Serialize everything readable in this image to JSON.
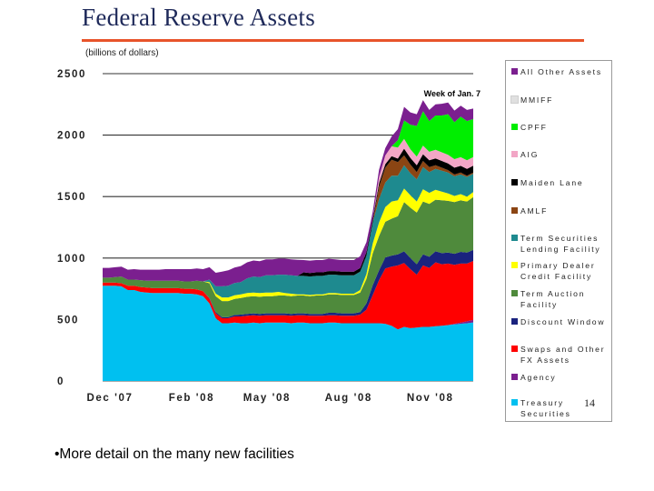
{
  "slide": {
    "title": "Federal Reserve Assets",
    "units": "(billions of dollars)",
    "page_number": "14",
    "bullet": "•More detail on the many new facilities"
  },
  "chart_data": {
    "type": "area",
    "stacked": true,
    "title": "Federal Reserve Assets",
    "ylabel": "(billions of dollars)",
    "xlabel": "",
    "ylim": [
      0,
      2500
    ],
    "xlim": [
      0,
      59
    ],
    "y_ticks": [
      0,
      500,
      1000,
      1500,
      2000,
      2500
    ],
    "y_tick_labels": [
      "0",
      "500",
      "1000",
      "1500",
      "2000",
      "2500"
    ],
    "x_tick_positions": [
      0,
      13,
      25,
      38,
      51
    ],
    "x_tick_labels": [
      "Dec '07",
      "Feb '08",
      "May '08",
      "Aug '08",
      "Nov '08"
    ],
    "annotation": {
      "text": "Week of Jan. 7",
      "x": 59,
      "y": 2310
    },
    "x": [
      0,
      1,
      2,
      3,
      4,
      5,
      6,
      7,
      8,
      9,
      10,
      11,
      12,
      13,
      14,
      15,
      16,
      17,
      18,
      19,
      20,
      21,
      22,
      23,
      24,
      25,
      26,
      27,
      28,
      29,
      30,
      31,
      32,
      33,
      34,
      35,
      36,
      37,
      38,
      39,
      40,
      41,
      42,
      43,
      44,
      45,
      46,
      47,
      48,
      49,
      50,
      51,
      52,
      53,
      54,
      55,
      56,
      57,
      58,
      59
    ],
    "series": [
      {
        "name": "Treasury Securities",
        "color": "#00c0f0",
        "values": [
          775,
          775,
          775,
          770,
          740,
          740,
          725,
          720,
          715,
          715,
          715,
          715,
          715,
          710,
          710,
          705,
          690,
          630,
          510,
          470,
          470,
          475,
          470,
          470,
          475,
          470,
          475,
          475,
          475,
          475,
          470,
          475,
          475,
          470,
          470,
          470,
          475,
          475,
          470,
          470,
          470,
          470,
          470,
          470,
          470,
          465,
          450,
          420,
          440,
          430,
          435,
          440,
          440,
          445,
          450,
          455,
          460,
          465,
          470,
          476
        ]
      },
      {
        "name": "Agency",
        "color": "#7b1f8f",
        "values": [
          0,
          0,
          0,
          0,
          0,
          0,
          0,
          0,
          0,
          0,
          0,
          0,
          0,
          0,
          0,
          0,
          0,
          0,
          0,
          0,
          0,
          0,
          0,
          0,
          0,
          0,
          0,
          0,
          0,
          0,
          0,
          0,
          0,
          0,
          0,
          0,
          0,
          0,
          0,
          0,
          0,
          0,
          0,
          0,
          0,
          0,
          0,
          0,
          0,
          0,
          0,
          0,
          0,
          0,
          0,
          0,
          5,
          10,
          15,
          20
        ]
      },
      {
        "name": "Swaps and Other FX Assets",
        "color": "#ff0000",
        "values": [
          25,
          25,
          25,
          25,
          35,
          35,
          40,
          40,
          40,
          40,
          40,
          40,
          40,
          40,
          40,
          40,
          40,
          40,
          40,
          40,
          40,
          50,
          55,
          60,
          60,
          60,
          60,
          60,
          60,
          60,
          60,
          60,
          60,
          60,
          60,
          60,
          60,
          60,
          60,
          60,
          60,
          70,
          110,
          230,
          350,
          450,
          480,
          520,
          520,
          480,
          430,
          500,
          480,
          520,
          500,
          500,
          480,
          480,
          470,
          480
        ]
      },
      {
        "name": "Discount Window",
        "color": "#1a237e",
        "values": [
          0,
          0,
          0,
          0,
          0,
          0,
          0,
          0,
          0,
          0,
          0,
          0,
          0,
          0,
          0,
          0,
          0,
          5,
          10,
          10,
          10,
          12,
          15,
          15,
          15,
          15,
          15,
          15,
          15,
          15,
          15,
          15,
          15,
          15,
          15,
          15,
          20,
          20,
          20,
          20,
          20,
          20,
          50,
          80,
          80,
          90,
          90,
          90,
          95,
          90,
          85,
          90,
          90,
          90,
          90,
          90,
          90,
          95,
          90,
          90
        ]
      },
      {
        "name": "Term Auction Facility",
        "color": "#4f8a3c",
        "values": [
          40,
          40,
          45,
          55,
          50,
          50,
          55,
          55,
          60,
          60,
          60,
          60,
          60,
          60,
          60,
          70,
          80,
          120,
          130,
          130,
          130,
          130,
          135,
          140,
          140,
          140,
          140,
          140,
          145,
          145,
          145,
          145,
          145,
          145,
          150,
          150,
          150,
          150,
          150,
          150,
          150,
          160,
          200,
          260,
          280,
          290,
          300,
          310,
          400,
          410,
          420,
          430,
          430,
          420,
          430,
          420,
          420,
          420,
          415,
          430
        ]
      },
      {
        "name": "Primary Dealer Credit Facility",
        "color": "#ffff00",
        "values": [
          0,
          0,
          0,
          0,
          0,
          0,
          0,
          0,
          0,
          0,
          0,
          0,
          0,
          0,
          0,
          0,
          0,
          10,
          20,
          30,
          30,
          30,
          30,
          30,
          30,
          30,
          30,
          30,
          30,
          20,
          20,
          10,
          10,
          10,
          10,
          10,
          10,
          10,
          10,
          10,
          10,
          20,
          40,
          80,
          110,
          120,
          140,
          130,
          110,
          100,
          90,
          100,
          90,
          80,
          70,
          60,
          50,
          50,
          40,
          40
        ]
      },
      {
        "name": "Term Securities Lending Facility",
        "color": "#1e8a8f",
        "values": [
          0,
          0,
          0,
          0,
          0,
          0,
          0,
          0,
          0,
          0,
          0,
          0,
          0,
          0,
          0,
          0,
          0,
          20,
          60,
          90,
          95,
          100,
          100,
          120,
          130,
          130,
          140,
          140,
          140,
          150,
          150,
          150,
          150,
          150,
          150,
          150,
          150,
          150,
          150,
          150,
          150,
          150,
          150,
          170,
          190,
          200,
          210,
          200,
          190,
          180,
          180,
          180,
          170,
          170,
          170,
          170,
          160,
          160,
          160,
          150
        ]
      },
      {
        "name": "AMLF",
        "color": "#8b4513",
        "values": [
          0,
          0,
          0,
          0,
          0,
          0,
          0,
          0,
          0,
          0,
          0,
          0,
          0,
          0,
          0,
          0,
          0,
          0,
          0,
          0,
          0,
          0,
          0,
          0,
          0,
          0,
          0,
          0,
          0,
          0,
          0,
          0,
          0,
          0,
          0,
          0,
          0,
          0,
          0,
          0,
          0,
          0,
          0,
          0,
          100,
          120,
          130,
          110,
          80,
          70,
          60,
          50,
          40,
          30,
          25,
          20,
          15,
          15,
          10,
          10
        ]
      },
      {
        "name": "Maiden Lane",
        "color": "#000000",
        "values": [
          0,
          0,
          0,
          0,
          0,
          0,
          0,
          0,
          0,
          0,
          0,
          0,
          0,
          0,
          0,
          0,
          0,
          0,
          0,
          0,
          0,
          0,
          0,
          0,
          0,
          0,
          0,
          0,
          0,
          0,
          0,
          0,
          29,
          29,
          29,
          29,
          29,
          29,
          29,
          29,
          29,
          29,
          29,
          29,
          29,
          29,
          29,
          29,
          55,
          55,
          55,
          55,
          55,
          55,
          55,
          55,
          55,
          55,
          55,
          55
        ]
      },
      {
        "name": "AIG",
        "color": "#f2a6c6",
        "values": [
          0,
          0,
          0,
          0,
          0,
          0,
          0,
          0,
          0,
          0,
          0,
          0,
          0,
          0,
          0,
          0,
          0,
          0,
          0,
          0,
          0,
          0,
          0,
          0,
          0,
          0,
          0,
          0,
          0,
          0,
          0,
          0,
          0,
          0,
          0,
          0,
          0,
          0,
          0,
          0,
          0,
          0,
          0,
          0,
          50,
          70,
          80,
          90,
          80,
          70,
          70,
          70,
          70,
          70,
          70,
          70,
          70,
          70,
          70,
          70
        ]
      },
      {
        "name": "CPFF",
        "color": "#00ee00",
        "values": [
          0,
          0,
          0,
          0,
          0,
          0,
          0,
          0,
          0,
          0,
          0,
          0,
          0,
          0,
          0,
          0,
          0,
          0,
          0,
          0,
          0,
          0,
          0,
          0,
          0,
          0,
          0,
          0,
          0,
          0,
          0,
          0,
          0,
          0,
          0,
          0,
          0,
          0,
          0,
          0,
          0,
          0,
          0,
          0,
          0,
          0,
          0,
          60,
          150,
          200,
          250,
          280,
          250,
          280,
          300,
          330,
          300,
          330,
          320,
          310
        ]
      },
      {
        "name": "MMIFF",
        "color": "#e0e0e0",
        "values": [
          0,
          0,
          0,
          0,
          0,
          0,
          0,
          0,
          0,
          0,
          0,
          0,
          0,
          0,
          0,
          0,
          0,
          0,
          0,
          0,
          0,
          0,
          0,
          0,
          0,
          0,
          0,
          0,
          0,
          0,
          0,
          0,
          0,
          0,
          0,
          0,
          0,
          0,
          0,
          0,
          0,
          0,
          0,
          0,
          0,
          0,
          0,
          0,
          0,
          0,
          0,
          0,
          0,
          0,
          0,
          0,
          0,
          0,
          0,
          0
        ]
      },
      {
        "name": "All Other Assets",
        "color": "#7b1f8f",
        "values": [
          80,
          80,
          80,
          80,
          80,
          85,
          85,
          90,
          90,
          90,
          95,
          95,
          95,
          100,
          100,
          100,
          100,
          100,
          110,
          120,
          125,
          125,
          130,
          130,
          130,
          130,
          130,
          130,
          130,
          130,
          130,
          130,
          100,
          100,
          100,
          100,
          100,
          95,
          95,
          95,
          95,
          95,
          80,
          60,
          60,
          60,
          80,
          90,
          110,
          100,
          95,
          90,
          90,
          90,
          95,
          95,
          95,
          90,
          90,
          85
        ]
      }
    ]
  },
  "legend": {
    "items": [
      {
        "label": "All Other Assets",
        "color": "#7b1f8f"
      },
      {
        "label": "MMIFF",
        "color": "#e0e0e0"
      },
      {
        "label": "CPFF",
        "color": "#00ee00"
      },
      {
        "label": "AIG",
        "color": "#f2a6c6"
      },
      {
        "label": "Maiden Lane",
        "color": "#000000"
      },
      {
        "label": "AMLF",
        "color": "#8b4513"
      },
      {
        "label": "Term Securities\nLending Facility",
        "color": "#1e8a8f"
      },
      {
        "label": "Primary Dealer\nCredit Facility",
        "color": "#ffff00"
      },
      {
        "label": "Term Auction\nFacility",
        "color": "#4f8a3c"
      },
      {
        "label": "Discount Window",
        "color": "#1a237e"
      },
      {
        "label": "Swaps and Other\nFX Assets",
        "color": "#ff0000"
      },
      {
        "label": "Agency",
        "color": "#7b1f8f"
      },
      {
        "label": "Treasury\nSecurities",
        "color": "#00c0f0"
      }
    ]
  }
}
